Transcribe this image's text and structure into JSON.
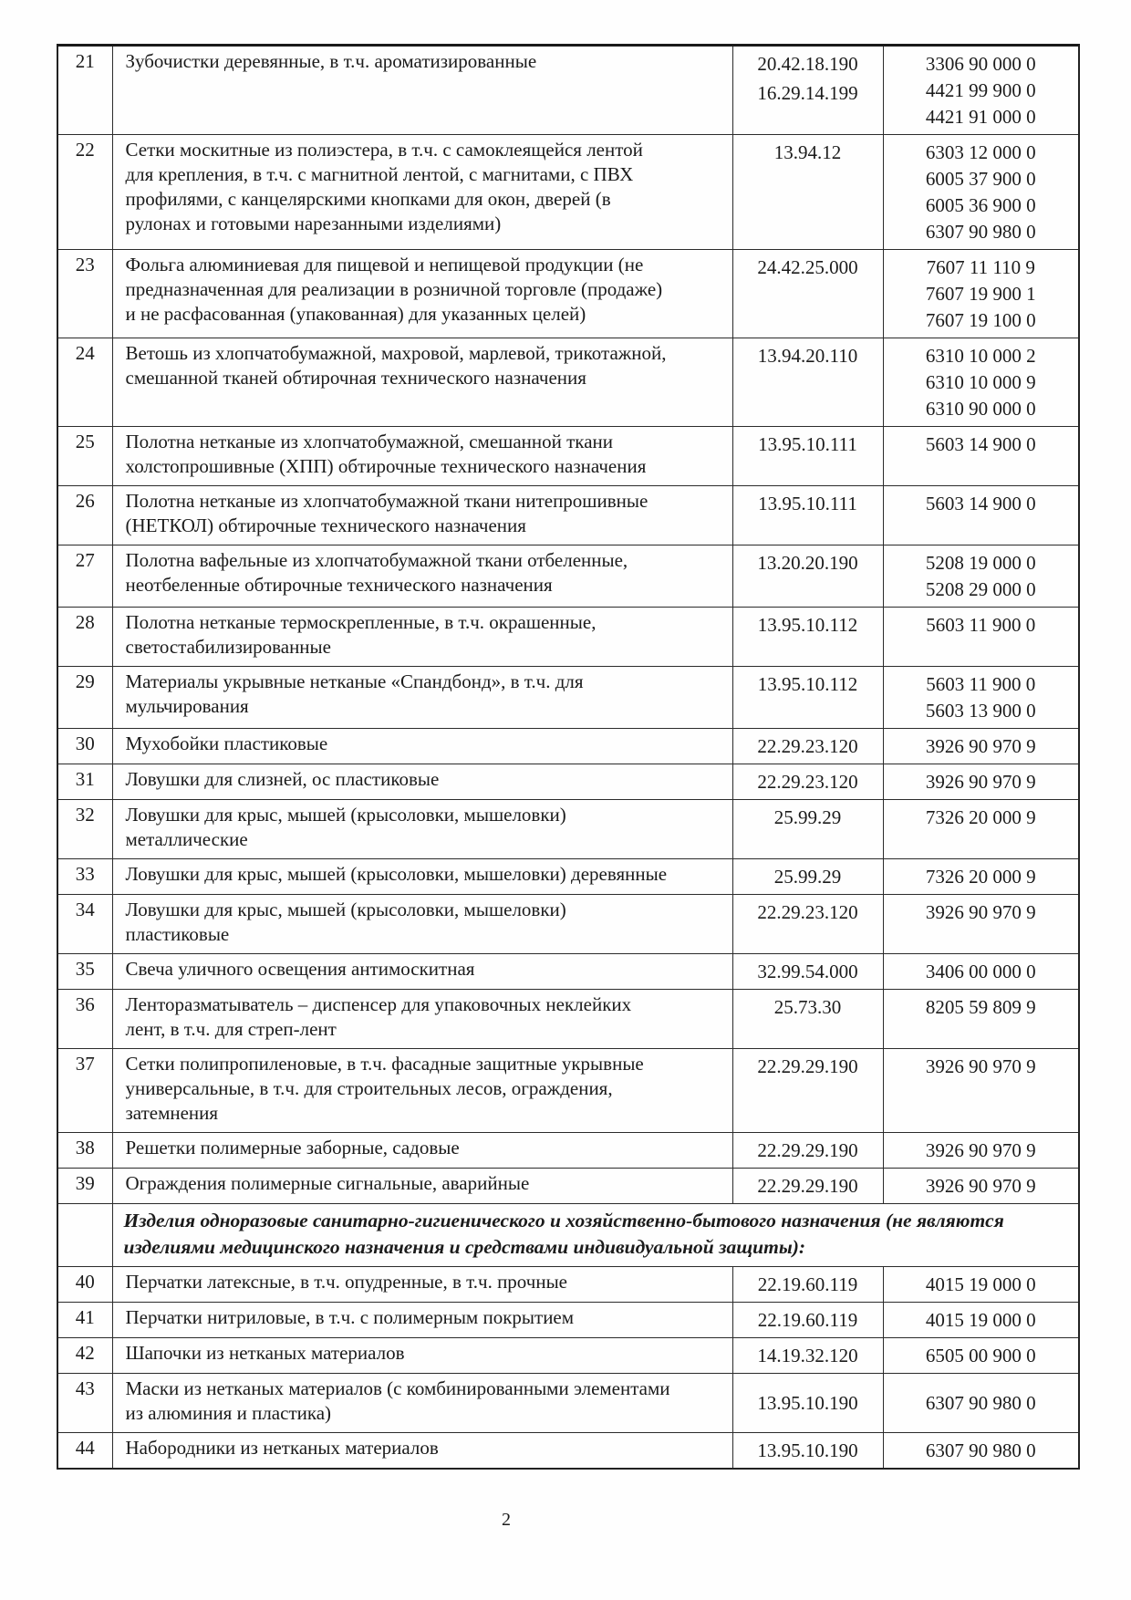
{
  "page": {
    "number": "2"
  },
  "table": {
    "rows": [
      {
        "type": "item",
        "num": "21",
        "name": "Зубочистки деревянные, в т.ч. ароматизированные",
        "okpd2": [
          "20.42.18.190",
          "16.29.14.199"
        ],
        "tnved": [
          "3306 90 000 0",
          "4421 99 900 0",
          "4421 91 000 0"
        ]
      },
      {
        "type": "item",
        "num": "22",
        "name": "Сетки москитные из полиэстера, в т.ч. с самоклеящейся лентой для крепления, в т.ч. с магнитной лентой, с магнитами, с ПВХ профилями, с канцелярскими кнопками для окон, дверей (в рулонах и готовыми нарезанными изделиями)",
        "okpd2": [
          "13.94.12"
        ],
        "tnved": [
          "6303 12 000 0",
          "6005 37 900 0",
          "6005 36 900 0",
          "6307 90 980 0"
        ]
      },
      {
        "type": "item",
        "num": "23",
        "name": "Фольга алюминиевая для пищевой и непищевой продукции (не предназначенная для реализации в розничной торговле (продаже) и не расфасованная (упакованная) для указанных целей)",
        "okpd2": [
          "24.42.25.000"
        ],
        "tnved": [
          "7607 11 110 9",
          "7607 19 900 1",
          "7607 19 100 0"
        ]
      },
      {
        "type": "item",
        "num": "24",
        "name": "Ветошь из хлопчатобумажной,  махровой, марлевой, трикотажной, смешанной тканей обтирочная технического назначения",
        "okpd2": [
          "13.94.20.110"
        ],
        "tnved": [
          "6310 10 000 2",
          "6310 10 000 9",
          "6310 90 000 0"
        ]
      },
      {
        "type": "item",
        "num": "25",
        "name": "Полотна нетканые из хлопчатобумажной, смешанной ткани холстопрошивные (ХПП) обтирочные технического назначения",
        "okpd2": [
          "13.95.10.111"
        ],
        "tnved": [
          "5603 14 900 0"
        ]
      },
      {
        "type": "item",
        "num": "26",
        "name": "Полотна нетканые из хлопчатобумажной ткани нитепрошивные (НЕТКОЛ) обтирочные технического назначения",
        "okpd2": [
          "13.95.10.111"
        ],
        "tnved": [
          "5603 14 900 0"
        ]
      },
      {
        "type": "item",
        "num": "27",
        "name": "Полотна вафельные из хлопчатобумажной ткани отбеленные, неотбеленные обтирочные технического назначения",
        "okpd2": [
          "13.20.20.190"
        ],
        "tnved": [
          "5208 19 000 0",
          "5208 29 000 0"
        ]
      },
      {
        "type": "item",
        "num": "28",
        "name": "Полотна нетканые термоскрепленные, в т.ч. окрашенные, светостабилизированные",
        "okpd2": [
          "13.95.10.112"
        ],
        "tnved": [
          "5603 11 900 0"
        ]
      },
      {
        "type": "item",
        "num": "29",
        "name": "Материалы укрывные нетканые «Спандбонд», в т.ч. для мульчирования",
        "okpd2": [
          "13.95.10.112"
        ],
        "tnved": [
          "5603 11 900 0",
          "5603 13 900 0"
        ]
      },
      {
        "type": "item",
        "num": "30",
        "name": "Мухобойки пластиковые",
        "okpd2": [
          "22.29.23.120"
        ],
        "tnved": [
          "3926 90 970 9"
        ]
      },
      {
        "type": "item",
        "num": "31",
        "name": "Ловушки для слизней, ос пластиковые",
        "okpd2": [
          "22.29.23.120"
        ],
        "tnved": [
          "3926 90 970 9"
        ]
      },
      {
        "type": "item",
        "num": "32",
        "name": "Ловушки для крыс, мышей (крысоловки, мышеловки) металлические",
        "okpd2": [
          "25.99.29"
        ],
        "tnved": [
          "7326 20 000 9"
        ]
      },
      {
        "type": "item",
        "num": "33",
        "name": "Ловушки для крыс, мышей (крысоловки, мышеловки) деревянные",
        "okpd2": [
          "25.99.29"
        ],
        "tnved": [
          "7326 20 000 9"
        ]
      },
      {
        "type": "item",
        "num": "34",
        "name": "Ловушки для крыс, мышей (крысоловки, мышеловки) пластиковые",
        "okpd2": [
          "22.29.23.120"
        ],
        "tnved": [
          "3926 90 970 9"
        ]
      },
      {
        "type": "item",
        "num": "35",
        "name": "Свеча уличного освещения антимоскитная",
        "okpd2": [
          "32.99.54.000"
        ],
        "tnved": [
          "3406 00 000 0"
        ]
      },
      {
        "type": "item",
        "num": "36",
        "name": "Ленторазматыватель – диспенсер для упаковочных неклейких лент, в т.ч. для стреп-лент",
        "okpd2": [
          "25.73.30"
        ],
        "tnved": [
          "8205 59 809 9"
        ]
      },
      {
        "type": "item",
        "num": "37",
        "name": "Сетки полипропиленовые, в т.ч. фасадные защитные укрывные универсальные, в т.ч. для строительных лесов, ограждения, затемнения",
        "okpd2": [
          "22.29.29.190"
        ],
        "tnved": [
          "3926 90 970 9"
        ]
      },
      {
        "type": "item",
        "num": "38",
        "name": "Решетки полимерные заборные, садовые",
        "okpd2": [
          "22.29.29.190"
        ],
        "tnved": [
          "3926 90 970 9"
        ]
      },
      {
        "type": "item",
        "num": "39",
        "name": "Ограждения полимерные сигнальные, аварийные",
        "okpd2": [
          "22.29.29.190"
        ],
        "tnved": [
          "3926 90 970 9"
        ]
      },
      {
        "type": "section",
        "text": "Изделия одноразовые санитарно-гигиенического и хозяйственно-бытового назначения (не являются изделиями медицинского назначения и средствами индивидуальной защиты):"
      },
      {
        "type": "item",
        "num": "40",
        "name": "Перчатки латексные, в т.ч. опудренные, в т.ч. прочные",
        "okpd2": [
          "22.19.60.119"
        ],
        "tnved": [
          "4015 19 000 0"
        ]
      },
      {
        "type": "item",
        "num": "41",
        "name": "Перчатки нитриловые, в т.ч. с полимерным покрытием",
        "okpd2": [
          "22.19.60.119"
        ],
        "tnved": [
          "4015 19 000 0"
        ]
      },
      {
        "type": "item",
        "num": "42",
        "name": "Шапочки из нетканых материалов",
        "okpd2": [
          "14.19.32.120"
        ],
        "tnved": [
          "6505 00 900 0"
        ]
      },
      {
        "type": "item",
        "num": "43",
        "name": "Маски из нетканых материалов (с комбинированными элементами из алюминия и пластика)",
        "okpd2": [
          "13.95.10.190"
        ],
        "tnved": [
          "6307 90 980 0"
        ],
        "valign": "middle"
      },
      {
        "type": "item",
        "num": "44",
        "name": "Набородники из нетканых материалов",
        "okpd2": [
          "13.95.10.190"
        ],
        "tnved": [
          "6307 90 980 0"
        ]
      }
    ]
  }
}
